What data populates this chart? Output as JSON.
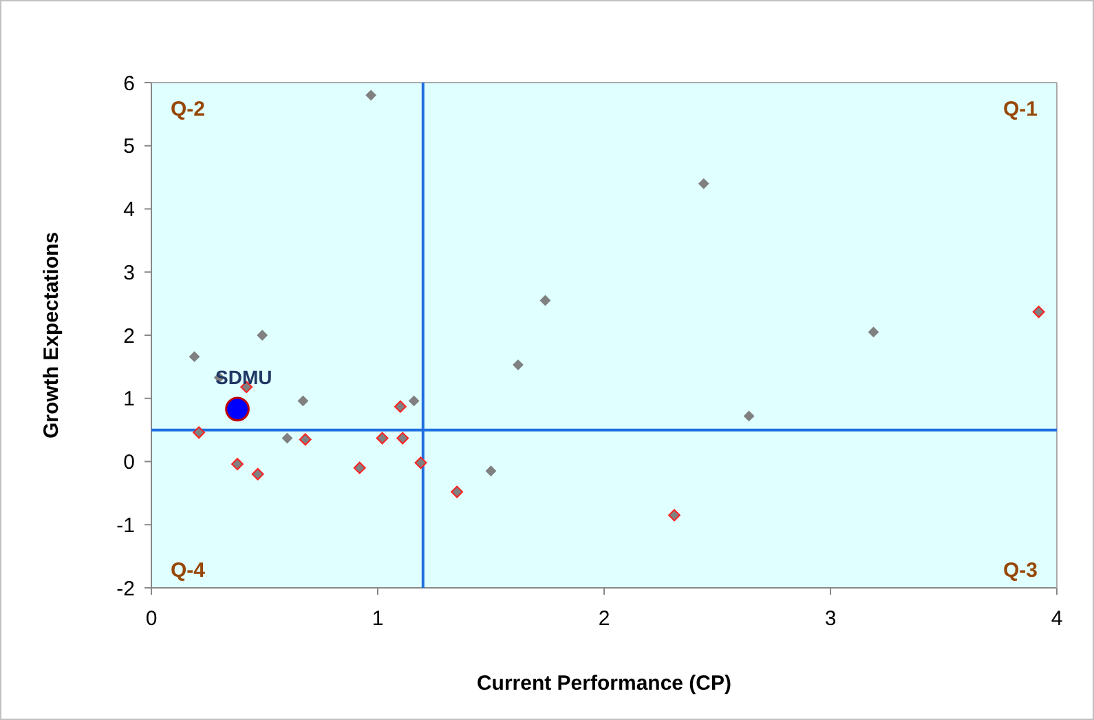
{
  "chart_data": {
    "type": "scatter",
    "xlabel": "Current Performance (CP)",
    "ylabel": "Growth Expectations",
    "xlim": [
      0,
      4
    ],
    "xticks": [
      0,
      1,
      2,
      3,
      4
    ],
    "ylim": [
      -2,
      6
    ],
    "yticks": [
      -2,
      -1,
      0,
      1,
      2,
      3,
      4,
      5,
      6
    ],
    "grid": false,
    "marker": "diamond",
    "series": [
      {
        "color": "#808080",
        "x": [
          0.97,
          0.49,
          0.19,
          0.3,
          0.67,
          1.16,
          0.6,
          1.5,
          2.44,
          1.74,
          1.62,
          3.19,
          2.64
        ],
        "values": [
          5.8,
          2.0,
          1.66,
          1.33,
          0.96,
          0.96,
          0.37,
          -0.15,
          4.4,
          2.55,
          1.53,
          2.05,
          0.72
        ]
      },
      {
        "color": "#808080",
        "x": [
          0.42,
          0.21,
          0.38,
          0.47,
          0.68,
          0.92,
          1.02,
          1.1,
          1.11,
          1.19,
          1.35,
          2.31,
          3.92
        ],
        "values": [
          1.18,
          0.46,
          -0.04,
          -0.2,
          0.35,
          -0.1,
          0.37,
          0.87,
          0.37,
          -0.02,
          -0.48,
          -0.85,
          2.37
        ]
      },
      {
        "name": "SDMU",
        "color": "#0000ff",
        "marker": "circle",
        "x": [
          0.38
        ],
        "values": [
          0.83
        ]
      }
    ],
    "ref_lines": [
      {
        "axis": "x",
        "value": 1.2,
        "color": "#1f6fe0"
      },
      {
        "axis": "y",
        "value": 0.5,
        "color": "#1f6fe0"
      }
    ],
    "annotations": [
      "Q-2",
      "Q-1",
      "Q-4",
      "Q-3"
    ]
  }
}
